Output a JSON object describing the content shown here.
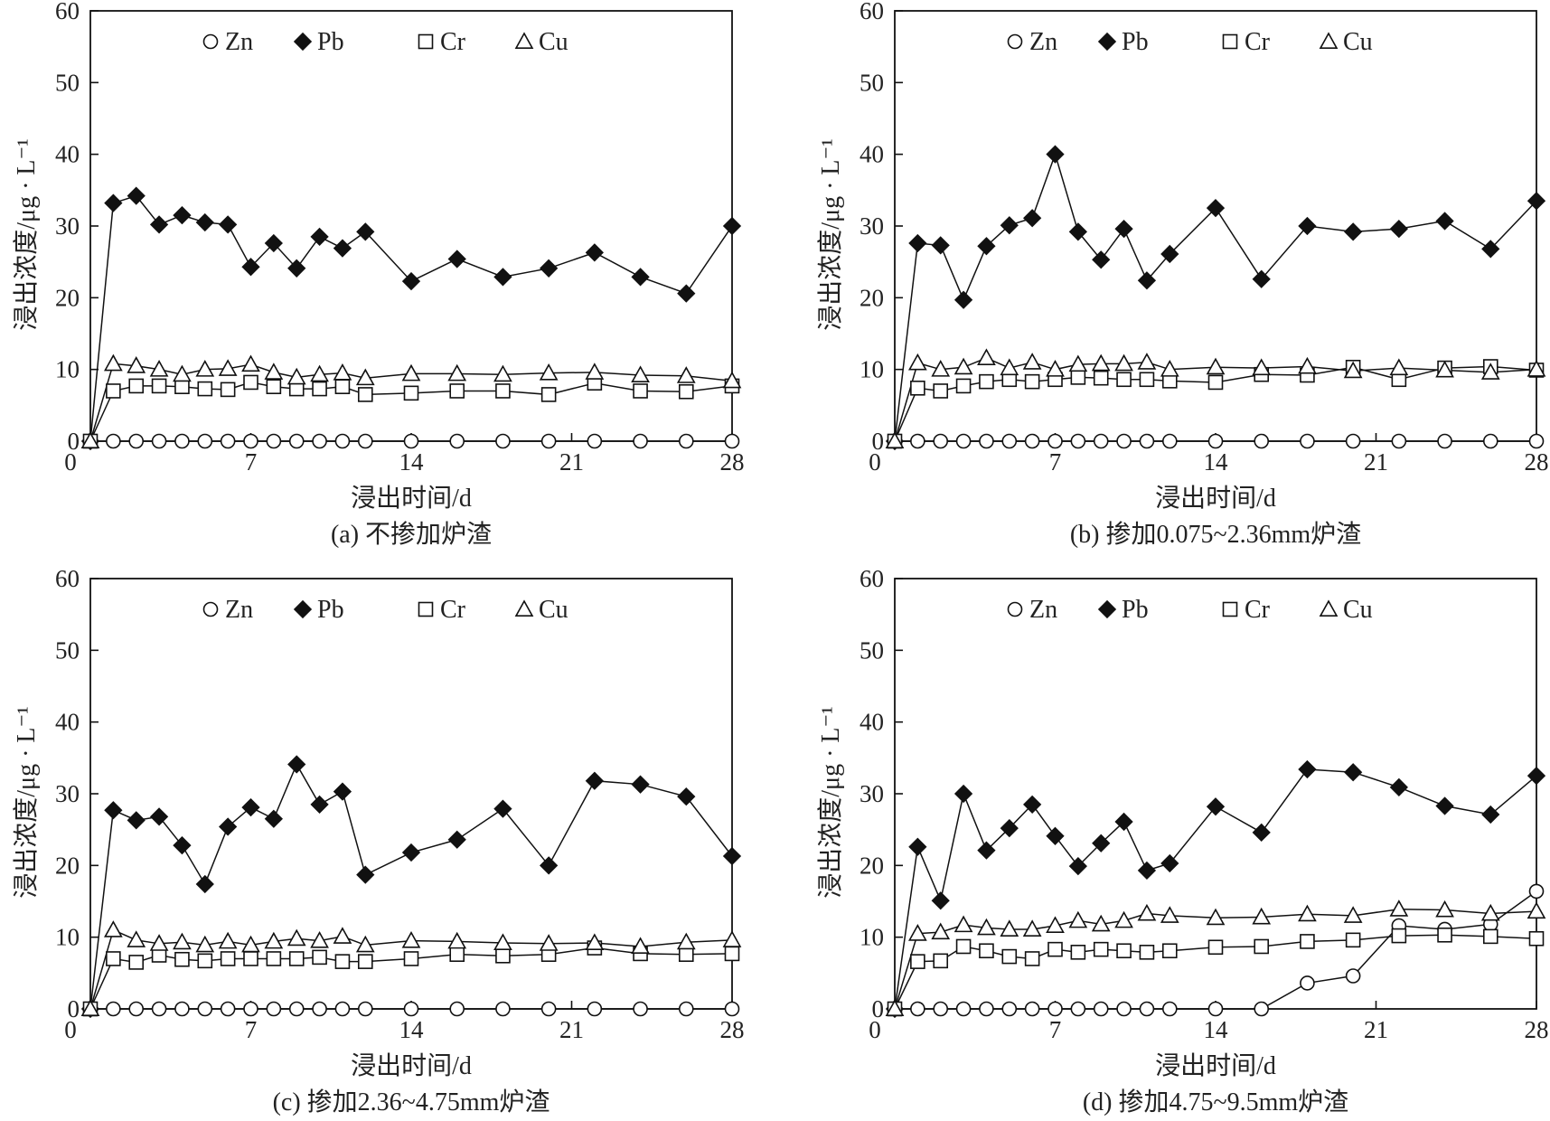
{
  "chart_data": [
    {
      "type": "line",
      "caption": "(a) 不掺加炉渣",
      "xlabel": "浸出时间/d",
      "ylabel": "浸出浓度/μg · L⁻¹",
      "xlim": [
        0,
        28
      ],
      "ylim": [
        0,
        60
      ],
      "xticks": [
        "0",
        "7",
        "14",
        "21",
        "28"
      ],
      "yticks": [
        "0",
        "10",
        "20",
        "30",
        "40",
        "50",
        "60"
      ],
      "legend": [
        "Zn",
        "Pb",
        "Cr",
        "Cu"
      ],
      "x": [
        0,
        1,
        2,
        3,
        4,
        5,
        6,
        7,
        8,
        9,
        10,
        11,
        12,
        14,
        16,
        18,
        20,
        22,
        24,
        26,
        28
      ],
      "series": [
        {
          "name": "Zn",
          "marker": "circle",
          "values": [
            0,
            0,
            0,
            0,
            0,
            0,
            0,
            0,
            0,
            0,
            0,
            0,
            0,
            0,
            0,
            0,
            0,
            0,
            0,
            0,
            0
          ]
        },
        {
          "name": "Pb",
          "marker": "diamond",
          "values": [
            0,
            33.2,
            34.2,
            30.2,
            31.5,
            30.5,
            30.2,
            24.3,
            27.6,
            24.1,
            28.5,
            26.9,
            29.2,
            22.3,
            25.4,
            22.9,
            24.1,
            26.3,
            22.9,
            20.6,
            30.0
          ]
        },
        {
          "name": "Cr",
          "marker": "square",
          "values": [
            0,
            7.0,
            7.7,
            7.7,
            7.6,
            7.3,
            7.2,
            8.2,
            7.6,
            7.3,
            7.3,
            7.6,
            6.5,
            6.7,
            7.0,
            7.0,
            6.5,
            8.1,
            7.0,
            6.9,
            7.7
          ]
        },
        {
          "name": "Cu",
          "marker": "triangle",
          "values": [
            0,
            10.8,
            10.5,
            10.0,
            9.3,
            10.0,
            10.1,
            10.7,
            9.6,
            8.9,
            9.3,
            9.5,
            8.8,
            9.4,
            9.4,
            9.3,
            9.5,
            9.6,
            9.2,
            9.1,
            8.4
          ]
        }
      ]
    },
    {
      "type": "line",
      "caption": "(b) 掺加0.075~2.36mm炉渣",
      "xlabel": "浸出时间/d",
      "ylabel": "浸出浓度/μg · L⁻¹",
      "xlim": [
        0,
        28
      ],
      "ylim": [
        0,
        60
      ],
      "xticks": [
        "0",
        "7",
        "14",
        "21",
        "28"
      ],
      "yticks": [
        "0",
        "10",
        "20",
        "30",
        "40",
        "50",
        "60"
      ],
      "legend": [
        "Zn",
        "Pb",
        "Cr",
        "Cu"
      ],
      "x": [
        0,
        1,
        2,
        3,
        4,
        5,
        6,
        7,
        8,
        9,
        10,
        11,
        12,
        14,
        16,
        18,
        20,
        22,
        24,
        26,
        28
      ],
      "series": [
        {
          "name": "Zn",
          "marker": "circle",
          "values": [
            0,
            0,
            0,
            0,
            0,
            0,
            0,
            0,
            0,
            0,
            0,
            0,
            0,
            0,
            0,
            0,
            0,
            0,
            0,
            0,
            0
          ]
        },
        {
          "name": "Pb",
          "marker": "diamond",
          "values": [
            0,
            27.6,
            27.3,
            19.7,
            27.2,
            30.1,
            31.1,
            40.0,
            29.2,
            25.3,
            29.6,
            22.4,
            26.1,
            32.5,
            22.6,
            30.0,
            29.2,
            29.6,
            30.7,
            26.8,
            33.5
          ]
        },
        {
          "name": "Cr",
          "marker": "square",
          "values": [
            0,
            7.4,
            7.0,
            7.7,
            8.3,
            8.6,
            8.3,
            8.6,
            8.9,
            8.8,
            8.6,
            8.6,
            8.4,
            8.2,
            9.3,
            9.2,
            10.3,
            8.6,
            10.2,
            10.4,
            9.9
          ]
        },
        {
          "name": "Cu",
          "marker": "triangle",
          "values": [
            0,
            10.9,
            10.0,
            10.3,
            11.6,
            10.2,
            11.0,
            10.0,
            10.7,
            10.8,
            10.8,
            11.0,
            10.0,
            10.3,
            10.2,
            10.4,
            9.8,
            10.2,
            9.9,
            9.6,
            10.0
          ]
        }
      ]
    },
    {
      "type": "line",
      "caption": "(c) 掺加2.36~4.75mm炉渣",
      "xlabel": "浸出时间/d",
      "ylabel": "浸出浓度/μg · L⁻¹",
      "xlim": [
        0,
        28
      ],
      "ylim": [
        0,
        60
      ],
      "xticks": [
        "0",
        "7",
        "14",
        "21",
        "28"
      ],
      "yticks": [
        "0",
        "10",
        "20",
        "30",
        "40",
        "50",
        "60"
      ],
      "legend": [
        "Zn",
        "Pb",
        "Cr",
        "Cu"
      ],
      "x": [
        0,
        1,
        2,
        3,
        4,
        5,
        6,
        7,
        8,
        9,
        10,
        11,
        12,
        14,
        16,
        18,
        20,
        22,
        24,
        26,
        28
      ],
      "series": [
        {
          "name": "Zn",
          "marker": "circle",
          "values": [
            0,
            0,
            0,
            0,
            0,
            0,
            0,
            0,
            0,
            0,
            0,
            0,
            0,
            0,
            0,
            0,
            0,
            0,
            0,
            0,
            0
          ]
        },
        {
          "name": "Pb",
          "marker": "diamond",
          "values": [
            0,
            27.7,
            26.3,
            26.8,
            22.8,
            17.4,
            25.4,
            28.1,
            26.5,
            34.1,
            28.5,
            30.3,
            18.7,
            21.8,
            23.6,
            27.9,
            20.0,
            31.8,
            31.3,
            29.6,
            21.3
          ]
        },
        {
          "name": "Cr",
          "marker": "square",
          "values": [
            0,
            7.0,
            6.5,
            7.5,
            6.9,
            6.7,
            7.0,
            7.0,
            7.0,
            7.0,
            7.2,
            6.6,
            6.6,
            7.0,
            7.6,
            7.4,
            7.6,
            8.5,
            7.7,
            7.6,
            7.7
          ]
        },
        {
          "name": "Cu",
          "marker": "triangle",
          "values": [
            0,
            11.0,
            9.6,
            9.1,
            9.3,
            8.9,
            9.4,
            8.9,
            9.4,
            9.8,
            9.5,
            10.1,
            8.9,
            9.5,
            9.4,
            9.2,
            9.1,
            9.2,
            8.7,
            9.3,
            9.6
          ]
        }
      ]
    },
    {
      "type": "line",
      "caption": "(d) 掺加4.75~9.5mm炉渣",
      "xlabel": "浸出时间/d",
      "ylabel": "浸出浓度/μg · L⁻¹",
      "xlim": [
        0,
        28
      ],
      "ylim": [
        0,
        60
      ],
      "xticks": [
        "0",
        "7",
        "14",
        "21",
        "28"
      ],
      "yticks": [
        "0",
        "10",
        "20",
        "30",
        "40",
        "50",
        "60"
      ],
      "legend": [
        "Zn",
        "Pb",
        "Cr",
        "Cu"
      ],
      "x": [
        0,
        1,
        2,
        3,
        4,
        5,
        6,
        7,
        8,
        9,
        10,
        11,
        12,
        14,
        16,
        18,
        20,
        22,
        24,
        26,
        28
      ],
      "series": [
        {
          "name": "Zn",
          "marker": "circle",
          "values": [
            0,
            0,
            0,
            0,
            0,
            0,
            0,
            0,
            0,
            0,
            0,
            0,
            0,
            0,
            0,
            3.6,
            4.6,
            11.6,
            11.1,
            11.8,
            16.4
          ]
        },
        {
          "name": "Pb",
          "marker": "diamond",
          "values": [
            0,
            22.6,
            15.1,
            30.0,
            22.1,
            25.2,
            28.5,
            24.1,
            19.9,
            23.1,
            26.1,
            19.3,
            20.3,
            28.2,
            24.6,
            33.4,
            33.0,
            30.9,
            28.3,
            27.1,
            32.5
          ]
        },
        {
          "name": "Cr",
          "marker": "square",
          "values": [
            0,
            6.6,
            6.7,
            8.7,
            8.1,
            7.3,
            7.0,
            8.3,
            7.9,
            8.3,
            8.1,
            7.9,
            8.1,
            8.6,
            8.7,
            9.4,
            9.6,
            10.2,
            10.3,
            10.1,
            9.8
          ]
        },
        {
          "name": "Cu",
          "marker": "triangle",
          "values": [
            0,
            10.5,
            10.7,
            11.7,
            11.3,
            11.1,
            11.1,
            11.6,
            12.3,
            11.8,
            12.3,
            13.3,
            13.0,
            12.7,
            12.8,
            13.2,
            13.0,
            13.9,
            13.8,
            13.3,
            13.6
          ]
        }
      ]
    }
  ]
}
